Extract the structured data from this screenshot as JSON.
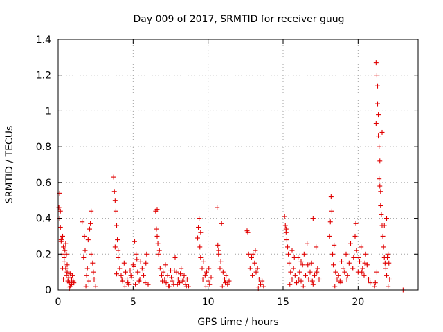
{
  "chart_data": {
    "type": "scatter",
    "title": "Day 009 of 2017, SRMTID for receiver guug",
    "xlabel": "GPS time / hours",
    "ylabel": "SRMTID / TECUs",
    "xlim": [
      0,
      24
    ],
    "ylim": [
      0,
      1.4
    ],
    "xticks": [
      0,
      5,
      10,
      15,
      20
    ],
    "xtick_labels": [
      "0",
      "5",
      "10",
      "15",
      "20"
    ],
    "yticks": [
      0,
      0.2,
      0.4,
      0.6,
      0.8,
      1.0,
      1.2,
      1.4
    ],
    "ytick_labels": [
      "0",
      "0.2",
      "0.4",
      "0.6",
      "0.8",
      "1",
      "1.2",
      "1.4"
    ],
    "grid": true,
    "marker": "+",
    "color": "#e00000",
    "series": [
      {
        "name": "SRMTID",
        "x": [
          0.05,
          0.1,
          0.15,
          0.2,
          0.25,
          0.3,
          0.35,
          0.4,
          0.45,
          0.5,
          0.55,
          0.6,
          0.65,
          0.7,
          0.75,
          0.8,
          0.85,
          0.9,
          0.95,
          1.0,
          1.05,
          0.1,
          0.2,
          0.3,
          0.4,
          0.5,
          0.6,
          0.7,
          0.8,
          0.9,
          0.15,
          0.35,
          0.55,
          0.75,
          1.6,
          1.7,
          1.8,
          1.9,
          2.0,
          2.1,
          2.2,
          2.3,
          2.4,
          2.5,
          1.75,
          1.95,
          2.15,
          2.35,
          2.05,
          2.2,
          1.85,
          3.7,
          3.75,
          3.8,
          3.85,
          3.9,
          3.95,
          4.0,
          4.1,
          4.2,
          4.3,
          4.4,
          4.5,
          4.6,
          4.7,
          4.8,
          4.9,
          5.0,
          5.1,
          5.2,
          5.3,
          5.4,
          5.5,
          5.6,
          5.7,
          5.8,
          5.9,
          6.0,
          3.8,
          3.9,
          4.0,
          4.25,
          4.45,
          4.65,
          4.85,
          5.05,
          5.25,
          5.45,
          5.65,
          5.85,
          5.15,
          6.5,
          6.55,
          6.6,
          6.65,
          6.7,
          6.8,
          6.9,
          7.0,
          7.1,
          7.2,
          7.3,
          7.4,
          7.5,
          7.6,
          7.7,
          7.8,
          7.9,
          8.0,
          8.1,
          8.2,
          8.3,
          8.4,
          8.5,
          8.6,
          8.7,
          6.6,
          6.75,
          6.95,
          7.15,
          7.35,
          7.55,
          7.75,
          7.95,
          8.15,
          8.35,
          8.55,
          9.3,
          9.35,
          9.4,
          9.45,
          9.5,
          9.6,
          9.7,
          9.8,
          9.9,
          10.0,
          10.1,
          10.2,
          9.5,
          9.65,
          9.85,
          10.05,
          10.6,
          10.65,
          10.7,
          10.8,
          10.85,
          10.9,
          11.0,
          11.1,
          11.2,
          11.3,
          11.4,
          10.7,
          10.95,
          11.15,
          12.6,
          12.65,
          12.7,
          12.8,
          12.9,
          13.0,
          13.1,
          13.2,
          13.3,
          13.4,
          13.5,
          13.6,
          13.7,
          12.95,
          13.15,
          13.35,
          15.1,
          15.15,
          15.2,
          15.25,
          15.3,
          15.35,
          15.4,
          15.5,
          15.6,
          15.7,
          15.8,
          15.9,
          16.0,
          16.1,
          16.2,
          16.3,
          16.4,
          16.5,
          16.6,
          16.7,
          16.8,
          16.9,
          17.0,
          17.1,
          17.2,
          17.3,
          17.4,
          15.2,
          15.45,
          15.75,
          16.05,
          16.35,
          16.65,
          16.95,
          17.25,
          17.0,
          16.2,
          15.6,
          18.1,
          18.15,
          18.2,
          18.25,
          18.3,
          18.35,
          18.4,
          18.5,
          18.6,
          18.7,
          18.8,
          18.9,
          19.0,
          19.1,
          19.2,
          19.3,
          19.4,
          19.5,
          19.6,
          19.7,
          19.8,
          19.9,
          20.0,
          20.1,
          20.2,
          20.3,
          20.4,
          20.5,
          20.6,
          20.7,
          20.8,
          18.45,
          18.85,
          19.25,
          19.65,
          20.05,
          20.45,
          19.85,
          20.25,
          21.1,
          21.15,
          21.2,
          21.2,
          21.25,
          21.3,
          21.3,
          21.35,
          21.35,
          21.4,
          21.4,
          21.45,
          21.5,
          21.5,
          21.55,
          21.6,
          21.65,
          21.7,
          21.75,
          21.8,
          21.85,
          21.9,
          21.95,
          22.0,
          22.05,
          22.1,
          21.25,
          21.45,
          21.6,
          21.75,
          21.9,
          22.0,
          23.0
        ],
        "y": [
          0.46,
          0.54,
          0.35,
          0.28,
          0.2,
          0.3,
          0.24,
          0.16,
          0.22,
          0.12,
          0.08,
          0.1,
          0.05,
          0.07,
          0.04,
          0.09,
          0.03,
          0.06,
          0.08,
          0.05,
          0.04,
          0.4,
          0.27,
          0.12,
          0.18,
          0.26,
          0.14,
          0.06,
          0.02,
          0.03,
          0.44,
          0.06,
          0.2,
          0.01,
          0.38,
          0.18,
          0.22,
          0.08,
          0.28,
          0.34,
          0.44,
          0.15,
          0.06,
          0.02,
          0.3,
          0.12,
          0.37,
          0.1,
          0.05,
          0.2,
          0.02,
          0.63,
          0.55,
          0.5,
          0.44,
          0.36,
          0.28,
          0.22,
          0.12,
          0.08,
          0.05,
          0.15,
          0.1,
          0.06,
          0.03,
          0.11,
          0.07,
          0.14,
          0.27,
          0.2,
          0.1,
          0.05,
          0.16,
          0.12,
          0.08,
          0.04,
          0.2,
          0.03,
          0.24,
          0.09,
          0.18,
          0.06,
          0.02,
          0.04,
          0.08,
          0.13,
          0.17,
          0.06,
          0.11,
          0.15,
          0.03,
          0.44,
          0.34,
          0.3,
          0.26,
          0.2,
          0.12,
          0.08,
          0.1,
          0.06,
          0.04,
          0.08,
          0.02,
          0.11,
          0.05,
          0.03,
          0.18,
          0.1,
          0.06,
          0.04,
          0.12,
          0.05,
          0.08,
          0.03,
          0.06,
          0.02,
          0.45,
          0.22,
          0.05,
          0.14,
          0.02,
          0.07,
          0.11,
          0.03,
          0.09,
          0.06,
          0.02,
          0.29,
          0.35,
          0.4,
          0.24,
          0.18,
          0.12,
          0.16,
          0.08,
          0.1,
          0.05,
          0.03,
          0.07,
          0.32,
          0.06,
          0.02,
          0.12,
          0.46,
          0.25,
          0.2,
          0.12,
          0.16,
          0.37,
          0.1,
          0.06,
          0.08,
          0.03,
          0.05,
          0.22,
          0.02,
          0.04,
          0.33,
          0.32,
          0.2,
          0.12,
          0.18,
          0.2,
          0.15,
          0.1,
          0.12,
          0.06,
          0.03,
          0.05,
          0.02,
          0.08,
          0.22,
          0.01,
          0.41,
          0.36,
          0.32,
          0.28,
          0.24,
          0.2,
          0.15,
          0.1,
          0.06,
          0.12,
          0.08,
          0.04,
          0.18,
          0.1,
          0.05,
          0.14,
          0.2,
          0.08,
          0.26,
          0.06,
          0.1,
          0.15,
          0.03,
          0.08,
          0.24,
          0.12,
          0.06,
          0.34,
          0.03,
          0.18,
          0.06,
          0.02,
          0.14,
          0.05,
          0.1,
          0.4,
          0.16,
          0.22,
          0.3,
          0.38,
          0.52,
          0.44,
          0.2,
          0.14,
          0.25,
          0.1,
          0.06,
          0.08,
          0.05,
          0.16,
          0.12,
          0.1,
          0.2,
          0.08,
          0.15,
          0.26,
          0.12,
          0.18,
          0.3,
          0.22,
          0.1,
          0.16,
          0.24,
          0.12,
          0.08,
          0.2,
          0.14,
          0.06,
          0.04,
          0.02,
          0.04,
          0.06,
          0.12,
          0.18,
          0.15,
          0.37,
          0.1,
          0.02,
          0.04,
          0.93,
          1.27,
          1.2,
          1.14,
          1.04,
          0.98,
          0.86,
          0.8,
          0.62,
          0.58,
          0.55,
          0.47,
          0.42,
          0.36,
          0.3,
          0.24,
          0.18,
          0.15,
          0.12,
          0.08,
          0.18,
          0.2,
          0.15,
          0.06,
          0.1,
          0.72,
          0.88,
          0.36,
          0.4,
          0.02,
          0.0
        ]
      }
    ]
  }
}
